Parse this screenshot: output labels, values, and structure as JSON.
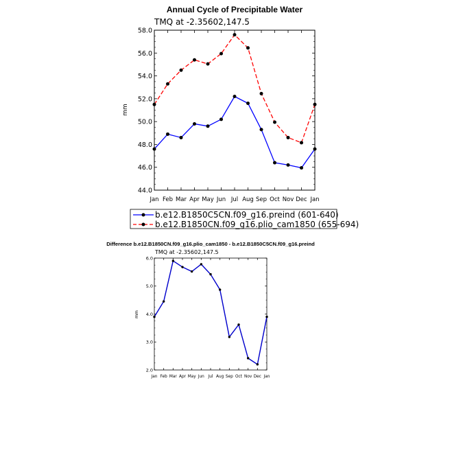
{
  "chart_data": [
    {
      "type": "line",
      "title": "Annual Cycle of Precipitable Water",
      "subtitle": "TMQ at -2.35602,147.5",
      "ylabel": "mm",
      "xlabel": "",
      "categories": [
        "Jan",
        "Feb",
        "Mar",
        "Apr",
        "May",
        "Jun",
        "Jul",
        "Aug",
        "Sep",
        "Oct",
        "Nov",
        "Dec",
        "Jan"
      ],
      "ylim": [
        44.0,
        58.0
      ],
      "yticks": [
        "44.0",
        "46.0",
        "48.0",
        "50.0",
        "52.0",
        "54.0",
        "56.0",
        "58.0"
      ],
      "grid": false,
      "legend_position": "bottom",
      "series": [
        {
          "name": "b.e12.B1850C5CN.f09_g16.preind (601-640)",
          "color": "#0000ff",
          "dash": "solid",
          "values": [
            47.6,
            48.9,
            48.6,
            49.8,
            49.6,
            50.2,
            52.2,
            51.6,
            49.3,
            46.4,
            46.2,
            45.95,
            47.6
          ]
        },
        {
          "name": "b.e12.B1850CN.f09_g16.plio_cam1850 (655-694)",
          "color": "#ff0000",
          "dash": "dashed",
          "values": [
            51.5,
            53.3,
            54.5,
            55.4,
            55.05,
            55.95,
            57.6,
            56.45,
            52.45,
            49.95,
            48.6,
            48.15,
            51.5
          ]
        }
      ]
    },
    {
      "type": "line",
      "title": "Difference b.e12.B1850CN.f09_g16.plio_cam1850 - b.e12.B1850C5CN.f09_g16.preind",
      "subtitle": "TMQ at -2.35602,147.5",
      "ylabel": "mm",
      "xlabel": "",
      "categories": [
        "Jan",
        "Feb",
        "Mar",
        "Apr",
        "May",
        "Jun",
        "Jul",
        "Aug",
        "Sep",
        "Oct",
        "Nov",
        "Dec",
        "Jan"
      ],
      "ylim": [
        2.0,
        6.0
      ],
      "yticks": [
        "2.0",
        "3.0",
        "4.0",
        "5.0",
        "6.0"
      ],
      "grid": false,
      "series": [
        {
          "color": "#0000cc",
          "dash": "solid",
          "values": [
            3.9,
            4.45,
            5.9,
            5.68,
            5.52,
            5.78,
            5.42,
            4.87,
            3.18,
            3.62,
            2.42,
            2.2,
            3.9
          ]
        }
      ]
    }
  ]
}
